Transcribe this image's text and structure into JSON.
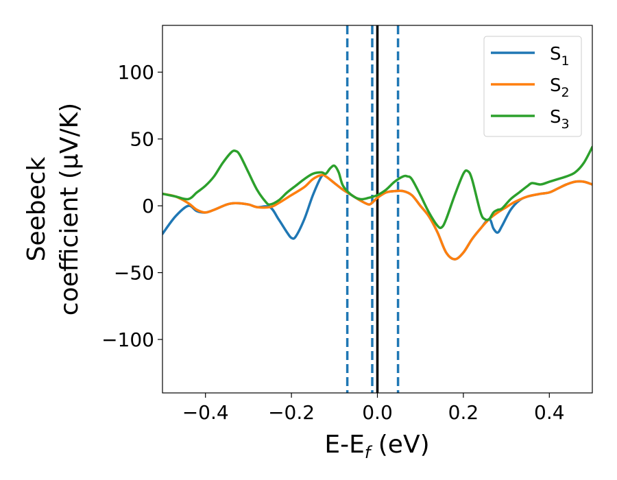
{
  "chart_data": {
    "type": "line",
    "xlabel": {
      "main": "E-E",
      "sub": "f",
      "tail": " (eV)"
    },
    "ylabel": {
      "line1": "Seebeck",
      "line2": "coefficient  (μV/K)"
    },
    "xlim": [
      -0.5,
      0.5
    ],
    "ylim": [
      -140,
      135
    ],
    "xticks": [
      -0.4,
      -0.2,
      0.0,
      0.2,
      0.4
    ],
    "xtick_labels": [
      "−0.4",
      "−0.2",
      "0.0",
      "0.2",
      "0.4"
    ],
    "yticks": [
      -100,
      -50,
      0,
      50,
      100
    ],
    "ytick_labels": [
      "−100",
      "−50",
      "0",
      "50",
      "100"
    ],
    "legend_position": "top-right",
    "fermi_line": {
      "x": 0.0,
      "color": "#000000"
    },
    "dashed_lines": {
      "x": [
        -0.07,
        -0.012,
        0.048
      ],
      "color": "#1f77b4"
    },
    "series": [
      {
        "name": "S",
        "sub": "1",
        "color": "#1f77b4",
        "x": [
          -0.5,
          -0.47,
          -0.44,
          -0.42,
          -0.4,
          -0.38,
          -0.35,
          -0.33,
          -0.3,
          -0.28,
          -0.25,
          -0.23,
          -0.21,
          -0.2,
          -0.19,
          -0.17,
          -0.15,
          -0.13,
          -0.12,
          -0.1,
          -0.08,
          -0.06,
          -0.04,
          -0.02,
          -0.01,
          0.0,
          0.02,
          0.04,
          0.06,
          0.08,
          0.1,
          0.12,
          0.14,
          0.16,
          0.18,
          0.2,
          0.22,
          0.24,
          0.26,
          0.27,
          0.28,
          0.29,
          0.31,
          0.33,
          0.35,
          0.38,
          0.4,
          0.42,
          0.44,
          0.46,
          0.48,
          0.5
        ],
        "y": [
          -21,
          -8,
          0,
          -4,
          -5,
          -3,
          1,
          2,
          1,
          -1,
          -1,
          -10,
          -20,
          -24,
          -23,
          -10,
          8,
          22,
          22,
          17,
          12,
          8,
          4,
          1,
          3,
          6,
          10,
          11,
          11,
          8,
          0,
          -8,
          -20,
          -35,
          -40,
          -35,
          -25,
          -17,
          -10,
          -17,
          -20,
          -15,
          -3,
          4,
          7,
          9,
          10,
          13,
          16,
          18,
          18,
          16
        ]
      },
      {
        "name": "S",
        "sub": "2",
        "color": "#ff7f0e",
        "x": [
          -0.5,
          -0.47,
          -0.44,
          -0.42,
          -0.4,
          -0.38,
          -0.35,
          -0.33,
          -0.3,
          -0.28,
          -0.25,
          -0.23,
          -0.2,
          -0.17,
          -0.15,
          -0.13,
          -0.12,
          -0.1,
          -0.08,
          -0.06,
          -0.04,
          -0.02,
          -0.01,
          0.0,
          0.02,
          0.04,
          0.06,
          0.08,
          0.1,
          0.12,
          0.14,
          0.16,
          0.18,
          0.2,
          0.22,
          0.24,
          0.26,
          0.28,
          0.3,
          0.32,
          0.35,
          0.38,
          0.4,
          0.42,
          0.44,
          0.46,
          0.48,
          0.5
        ],
        "y": [
          9,
          7,
          2,
          -3,
          -5,
          -3,
          1,
          2,
          1,
          -1,
          -1,
          2,
          8,
          14,
          20,
          23,
          22,
          17,
          12,
          8,
          4,
          1,
          3,
          6,
          10,
          11,
          11,
          8,
          0,
          -8,
          -20,
          -35,
          -40,
          -35,
          -25,
          -17,
          -10,
          -5,
          -1,
          3,
          7,
          9,
          10,
          13,
          16,
          18,
          18,
          16
        ]
      },
      {
        "name": "S",
        "sub": "3",
        "color": "#2ca02c",
        "x": [
          -0.5,
          -0.47,
          -0.44,
          -0.42,
          -0.4,
          -0.38,
          -0.36,
          -0.34,
          -0.33,
          -0.32,
          -0.3,
          -0.28,
          -0.26,
          -0.25,
          -0.23,
          -0.21,
          -0.19,
          -0.17,
          -0.15,
          -0.13,
          -0.12,
          -0.11,
          -0.1,
          -0.09,
          -0.08,
          -0.06,
          -0.04,
          -0.02,
          0.0,
          0.02,
          0.04,
          0.06,
          0.07,
          0.08,
          0.1,
          0.12,
          0.14,
          0.15,
          0.16,
          0.18,
          0.2,
          0.21,
          0.22,
          0.24,
          0.25,
          0.26,
          0.27,
          0.28,
          0.29,
          0.31,
          0.33,
          0.35,
          0.36,
          0.38,
          0.4,
          0.42,
          0.44,
          0.46,
          0.48,
          0.5
        ],
        "y": [
          9,
          7,
          5,
          10,
          15,
          22,
          32,
          40,
          41,
          38,
          25,
          12,
          3,
          1,
          4,
          10,
          15,
          20,
          24,
          25,
          24,
          28,
          30,
          25,
          15,
          8,
          5,
          6,
          8,
          12,
          18,
          22,
          22,
          20,
          8,
          -5,
          -15,
          -16,
          -10,
          8,
          24,
          26,
          20,
          -5,
          -10,
          -10,
          -5,
          -3,
          -2,
          5,
          10,
          15,
          17,
          16,
          18,
          20,
          22,
          25,
          32,
          44
        ]
      }
    ]
  }
}
